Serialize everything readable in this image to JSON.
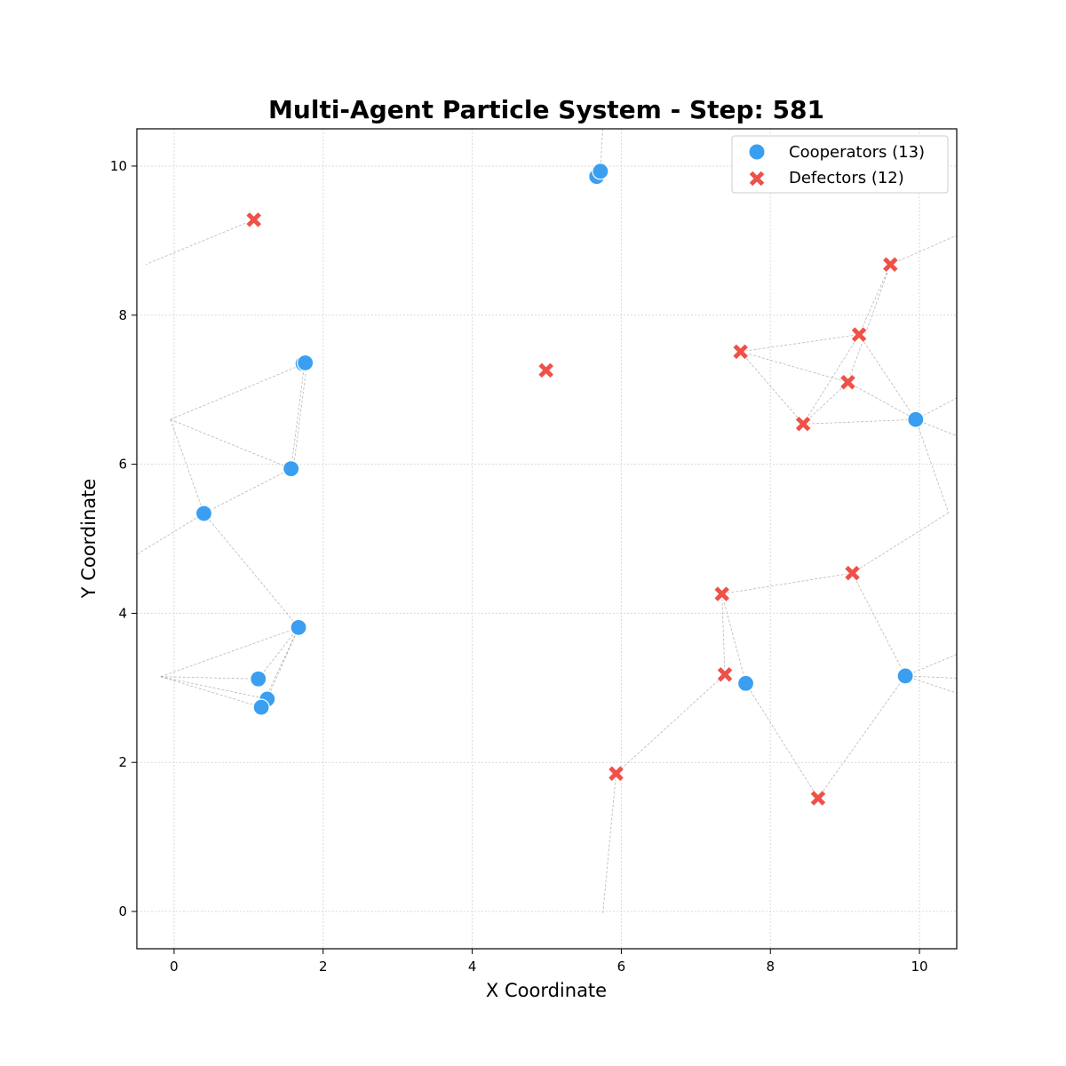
{
  "chart_data": {
    "type": "scatter",
    "title": "Multi-Agent Particle System - Step: 581",
    "xlabel": "X Coordinate",
    "ylabel": "Y Coordinate",
    "xlim": [
      -0.5,
      10.5
    ],
    "ylim": [
      -0.5,
      10.5
    ],
    "xticks": [
      0,
      2,
      4,
      6,
      8,
      10
    ],
    "yticks": [
      0,
      2,
      4,
      6,
      8,
      10
    ],
    "grid": true,
    "legend_position": "top-right",
    "colors": {
      "cooperator": "#3a9ff0",
      "defector": "#ef5148",
      "link": "#9a9a9a"
    },
    "series": [
      {
        "name": "Cooperators (13)",
        "marker": "circle",
        "points": [
          [
            5.67,
            9.86
          ],
          [
            5.72,
            9.93
          ],
          [
            1.73,
            7.35
          ],
          [
            1.76,
            7.36
          ],
          [
            1.57,
            5.94
          ],
          [
            0.4,
            5.34
          ],
          [
            1.67,
            3.81
          ],
          [
            1.13,
            3.12
          ],
          [
            1.25,
            2.85
          ],
          [
            1.17,
            2.74
          ],
          [
            9.95,
            6.6
          ],
          [
            9.81,
            3.16
          ],
          [
            7.67,
            3.06
          ]
        ]
      },
      {
        "name": "Defectors (12)",
        "marker": "x",
        "points": [
          [
            1.07,
            9.28
          ],
          [
            4.99,
            7.26
          ],
          [
            9.61,
            8.68
          ],
          [
            9.19,
            7.74
          ],
          [
            7.6,
            7.51
          ],
          [
            9.04,
            7.1
          ],
          [
            8.44,
            6.54
          ],
          [
            9.1,
            4.54
          ],
          [
            7.35,
            4.26
          ],
          [
            7.39,
            3.18
          ],
          [
            5.93,
            1.85
          ],
          [
            8.64,
            1.52
          ]
        ]
      }
    ],
    "links": [
      [
        [
          1.07,
          9.28
        ],
        [
          -0.38,
          8.68
        ]
      ],
      [
        [
          5.72,
          9.93
        ],
        [
          5.75,
          10.5
        ]
      ],
      [
        [
          -0.05,
          6.6
        ],
        [
          1.75,
          7.35
        ]
      ],
      [
        [
          -0.05,
          6.6
        ],
        [
          1.57,
          5.94
        ]
      ],
      [
        [
          -0.05,
          6.6
        ],
        [
          0.4,
          5.34
        ]
      ],
      [
        [
          1.75,
          7.35
        ],
        [
          1.57,
          5.94
        ]
      ],
      [
        [
          1.78,
          7.33
        ],
        [
          1.6,
          5.94
        ]
      ],
      [
        [
          1.57,
          5.94
        ],
        [
          0.4,
          5.34
        ]
      ],
      [
        [
          0.4,
          5.34
        ],
        [
          -0.5,
          4.79
        ]
      ],
      [
        [
          0.4,
          5.34
        ],
        [
          1.67,
          3.81
        ]
      ],
      [
        [
          -0.18,
          3.15
        ],
        [
          1.67,
          3.81
        ]
      ],
      [
        [
          -0.18,
          3.15
        ],
        [
          1.13,
          3.12
        ]
      ],
      [
        [
          -0.18,
          3.15
        ],
        [
          1.25,
          2.85
        ]
      ],
      [
        [
          -0.18,
          3.15
        ],
        [
          1.17,
          2.74
        ]
      ],
      [
        [
          1.67,
          3.81
        ],
        [
          1.13,
          3.12
        ]
      ],
      [
        [
          1.67,
          3.81
        ],
        [
          1.25,
          2.85
        ]
      ],
      [
        [
          1.67,
          3.81
        ],
        [
          1.17,
          2.74
        ]
      ],
      [
        [
          9.61,
          8.68
        ],
        [
          10.5,
          9.07
        ]
      ],
      [
        [
          9.61,
          8.68
        ],
        [
          9.19,
          7.74
        ]
      ],
      [
        [
          9.61,
          8.68
        ],
        [
          9.04,
          7.1
        ]
      ],
      [
        [
          7.6,
          7.51
        ],
        [
          9.19,
          7.74
        ]
      ],
      [
        [
          7.6,
          7.51
        ],
        [
          9.04,
          7.1
        ]
      ],
      [
        [
          7.6,
          7.51
        ],
        [
          8.44,
          6.54
        ]
      ],
      [
        [
          9.19,
          7.74
        ],
        [
          8.44,
          6.54
        ]
      ],
      [
        [
          9.19,
          7.74
        ],
        [
          9.95,
          6.6
        ]
      ],
      [
        [
          9.04,
          7.1
        ],
        [
          8.44,
          6.54
        ]
      ],
      [
        [
          9.04,
          7.1
        ],
        [
          9.95,
          6.6
        ]
      ],
      [
        [
          8.44,
          6.54
        ],
        [
          9.95,
          6.6
        ]
      ],
      [
        [
          9.95,
          6.6
        ],
        [
          10.5,
          6.89
        ]
      ],
      [
        [
          9.95,
          6.6
        ],
        [
          10.5,
          6.38
        ]
      ],
      [
        [
          9.95,
          6.6
        ],
        [
          10.39,
          5.35
        ]
      ],
      [
        [
          10.39,
          5.35
        ],
        [
          9.1,
          4.54
        ]
      ],
      [
        [
          9.1,
          4.54
        ],
        [
          7.35,
          4.26
        ]
      ],
      [
        [
          9.1,
          4.54
        ],
        [
          9.81,
          3.16
        ]
      ],
      [
        [
          7.35,
          4.26
        ],
        [
          7.39,
          3.18
        ]
      ],
      [
        [
          7.35,
          4.26
        ],
        [
          7.67,
          3.06
        ]
      ],
      [
        [
          7.39,
          3.18
        ],
        [
          5.93,
          1.85
        ]
      ],
      [
        [
          5.93,
          1.85
        ],
        [
          5.75,
          -0.05
        ]
      ],
      [
        [
          7.67,
          3.06
        ],
        [
          8.64,
          1.52
        ]
      ],
      [
        [
          8.64,
          1.52
        ],
        [
          9.81,
          3.16
        ]
      ],
      [
        [
          9.81,
          3.16
        ],
        [
          10.5,
          3.45
        ]
      ],
      [
        [
          9.81,
          3.16
        ],
        [
          10.5,
          3.13
        ]
      ],
      [
        [
          9.81,
          3.16
        ],
        [
          10.5,
          2.93
        ]
      ]
    ]
  }
}
